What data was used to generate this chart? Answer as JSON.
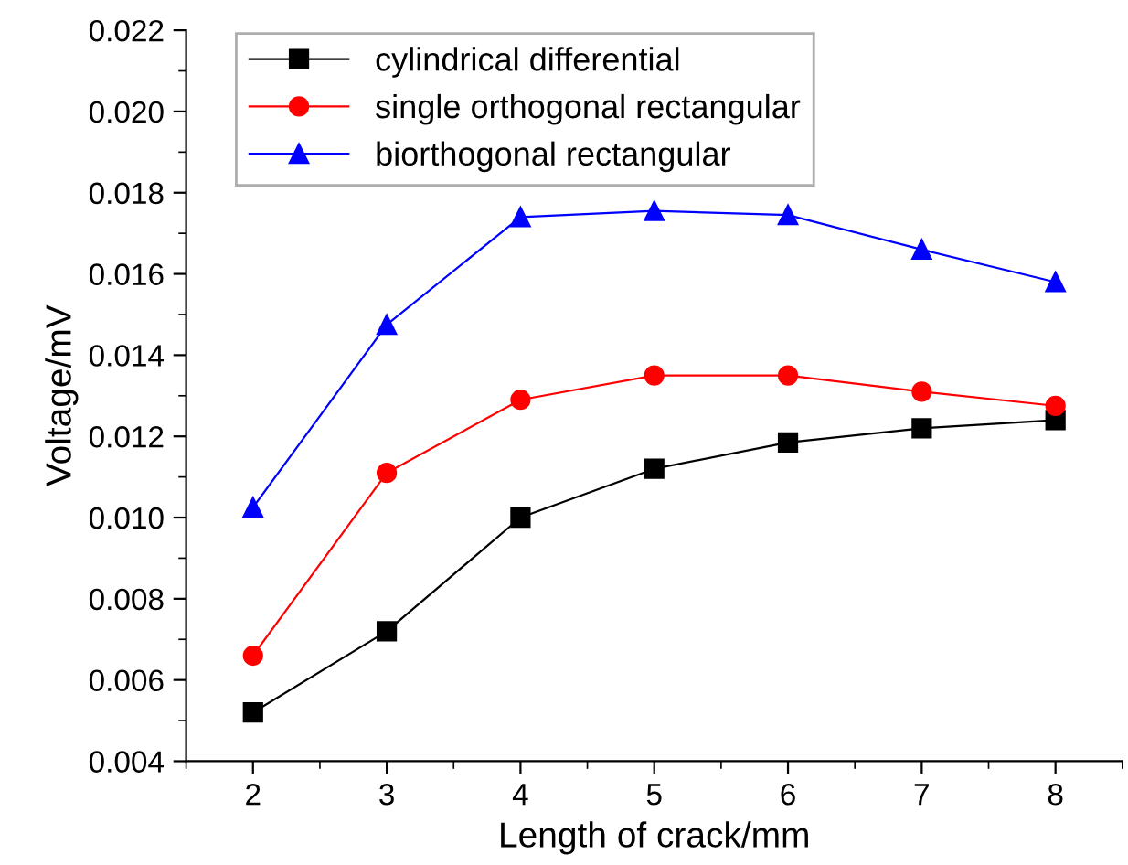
{
  "chart_data": {
    "type": "line",
    "xlabel": "Length of crack/mm",
    "ylabel": "Voltage/mV",
    "x": [
      2,
      3,
      4,
      5,
      6,
      7,
      8
    ],
    "series": [
      {
        "name": "cylindrical differential",
        "color": "#000000",
        "marker": "square",
        "values": [
          0.0052,
          0.0072,
          0.01,
          0.0112,
          0.01185,
          0.0122,
          0.0124
        ]
      },
      {
        "name": "single orthogonal rectangular",
        "color": "#ff0000",
        "marker": "circle",
        "values": [
          0.0066,
          0.0111,
          0.0129,
          0.0135,
          0.0135,
          0.0131,
          0.01275
        ]
      },
      {
        "name": "biorthogonal rectangular",
        "color": "#0000ff",
        "marker": "triangle",
        "values": [
          0.01025,
          0.01475,
          0.0174,
          0.01755,
          0.01745,
          0.0166,
          0.0158
        ]
      }
    ],
    "xlim": [
      1.5,
      8.5
    ],
    "ylim": [
      0.004,
      0.022
    ],
    "xticks": [
      2,
      3,
      4,
      5,
      6,
      7,
      8
    ],
    "yticks": [
      0.004,
      0.006,
      0.008,
      {
        "value": 0.01,
        "label": "0.010"
      },
      0.012,
      0.014,
      0.016,
      0.018,
      {
        "value": 0.02,
        "label": "0.020"
      },
      0.022
    ],
    "grid": false,
    "legend": "top left",
    "line_style": "solid"
  }
}
